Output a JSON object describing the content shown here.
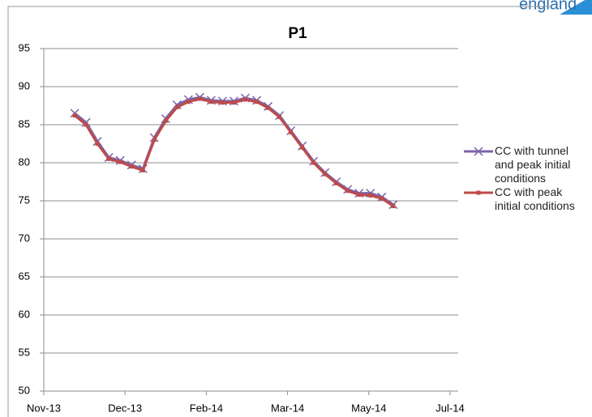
{
  "logo": "england",
  "chart_data": {
    "type": "line",
    "title": "P1",
    "x": [
      41598,
      41605,
      41612,
      41619,
      41626,
      41633,
      41640,
      41647,
      41654,
      41661,
      41668,
      41675,
      41682,
      41689,
      41696,
      41703,
      41710,
      41717,
      41724,
      41731,
      41738,
      41745,
      41752,
      41759,
      41766,
      41773,
      41780,
      41787,
      41794
    ],
    "series": [
      {
        "name": "CC with tunnel and peak initial conditions",
        "color": "#7e62a6",
        "marker": "x",
        "values": [
          86.5,
          85.3,
          82.8,
          80.7,
          80.3,
          79.7,
          79.2,
          83.3,
          85.8,
          87.6,
          88.3,
          88.6,
          88.2,
          88.1,
          88.1,
          88.5,
          88.2,
          87.4,
          86.2,
          84.2,
          82.2,
          80.2,
          78.7,
          77.5,
          76.5,
          76.0,
          76.0,
          75.5,
          74.5
        ]
      },
      {
        "name": "CC with peak initial conditions",
        "color": "#be4b48",
        "marker": "square",
        "values": [
          86.2,
          85.0,
          82.5,
          80.5,
          80.1,
          79.5,
          79.0,
          83.0,
          85.5,
          87.3,
          88.0,
          88.4,
          88.0,
          87.9,
          87.9,
          88.3,
          88.0,
          87.2,
          86.0,
          84.0,
          82.0,
          80.0,
          78.5,
          77.3,
          76.3,
          75.8,
          75.7,
          75.3,
          74.3
        ]
      }
    ],
    "xlim": [
      41579,
      41829
    ],
    "xticks": [
      {
        "value": 41579,
        "label": "Nov-13"
      },
      {
        "value": 41629,
        "label": "Dec-13"
      },
      {
        "value": 41679,
        "label": "Feb-14"
      },
      {
        "value": 41729,
        "label": "Mar-14"
      },
      {
        "value": 41779,
        "label": "May-14"
      },
      {
        "value": 41829,
        "label": "Jul-14"
      }
    ],
    "ylim": [
      50,
      95
    ],
    "yticks": [
      50,
      55,
      60,
      65,
      70,
      75,
      80,
      85,
      90,
      95
    ],
    "grid": true,
    "legend": "right"
  }
}
